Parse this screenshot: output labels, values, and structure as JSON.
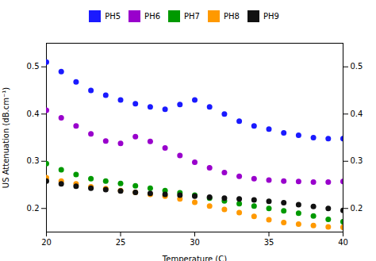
{
  "chart_data": {
    "type": "scatter",
    "xlabel": "Temperature (C)",
    "ylabel": "US Attenuation (dB.cm⁻¹)",
    "xlim": [
      20,
      40
    ],
    "ylim": [
      0.15,
      0.55
    ],
    "xticks": [
      20,
      25,
      30,
      35,
      40
    ],
    "yticks": [
      0.2,
      0.3,
      0.4,
      0.5
    ],
    "y2lim": [
      0.15,
      0.55
    ],
    "y2ticks": [
      0.2,
      0.3,
      0.4,
      0.5
    ],
    "legend": "top",
    "marker": "circle",
    "x": [
      20,
      21,
      22,
      23,
      24,
      25,
      26,
      27,
      28,
      29,
      30,
      31,
      32,
      33,
      34,
      35,
      36,
      37,
      38,
      39,
      40
    ],
    "series": [
      {
        "name": "PH5",
        "color": "#1a1aff",
        "values": [
          0.51,
          0.49,
          0.468,
          0.45,
          0.44,
          0.43,
          0.422,
          0.415,
          0.41,
          0.42,
          0.43,
          0.415,
          0.4,
          0.385,
          0.375,
          0.368,
          0.36,
          0.355,
          0.35,
          0.348,
          0.348
        ]
      },
      {
        "name": "PH6",
        "color": "#9900cc",
        "values": [
          0.408,
          0.392,
          0.375,
          0.358,
          0.343,
          0.338,
          0.352,
          0.342,
          0.328,
          0.312,
          0.298,
          0.286,
          0.276,
          0.268,
          0.263,
          0.26,
          0.258,
          0.257,
          0.256,
          0.256,
          0.257
        ]
      },
      {
        "name": "PH7",
        "color": "#009900",
        "values": [
          0.295,
          0.282,
          0.272,
          0.263,
          0.258,
          0.253,
          0.248,
          0.243,
          0.238,
          0.233,
          0.228,
          0.222,
          0.216,
          0.21,
          0.205,
          0.2,
          0.195,
          0.19,
          0.184,
          0.177,
          0.172
        ]
      },
      {
        "name": "PH8",
        "color": "#ff9900",
        "values": [
          0.265,
          0.258,
          0.252,
          0.246,
          0.242,
          0.238,
          0.234,
          0.23,
          0.226,
          0.22,
          0.213,
          0.205,
          0.198,
          0.191,
          0.183,
          0.176,
          0.17,
          0.167,
          0.164,
          0.161,
          0.16
        ]
      },
      {
        "name": "PH9",
        "color": "#111111",
        "values": [
          0.258,
          0.252,
          0.247,
          0.243,
          0.24,
          0.237,
          0.234,
          0.232,
          0.23,
          0.228,
          0.226,
          0.224,
          0.222,
          0.22,
          0.218,
          0.215,
          0.212,
          0.208,
          0.204,
          0.2,
          0.196
        ]
      }
    ]
  }
}
